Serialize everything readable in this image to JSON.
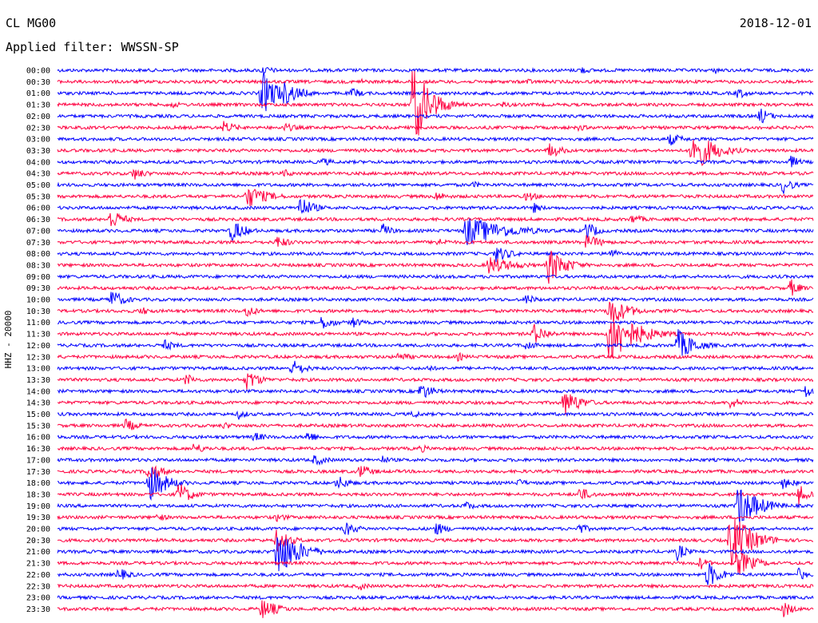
{
  "header": {
    "station": "CL MG00",
    "date": "2018-12-01",
    "filter_label": "Applied filter: WWSSN-SP"
  },
  "chart_data": {
    "type": "line",
    "title": "CL MG00",
    "ylabel": "HHZ - 20000",
    "row_labels": [
      "00:00",
      "00:30",
      "01:00",
      "01:30",
      "02:00",
      "02:30",
      "03:00",
      "03:30",
      "04:00",
      "04:30",
      "05:00",
      "05:30",
      "06:00",
      "06:30",
      "07:00",
      "07:30",
      "08:00",
      "08:30",
      "09:00",
      "09:30",
      "10:00",
      "10:30",
      "11:00",
      "11:30",
      "12:00",
      "12:30",
      "13:00",
      "13:30",
      "14:00",
      "14:30",
      "15:00",
      "15:30",
      "16:00",
      "16:30",
      "17:00",
      "17:30",
      "18:00",
      "18:30",
      "19:00",
      "19:30",
      "20:00",
      "20:30",
      "21:00",
      "21:30",
      "22:00",
      "22:30",
      "23:00",
      "23:30"
    ],
    "colors": [
      "#0000ff",
      "#ff0040"
    ],
    "background_noise": 2.0,
    "events": [
      {
        "row": 0,
        "pos": 0.27,
        "amp": 6,
        "dur": 0.05
      },
      {
        "row": 0,
        "pos": 0.69,
        "amp": 6,
        "dur": 0.04
      },
      {
        "row": 0,
        "pos": 0.87,
        "amp": 5,
        "dur": 0.03
      },
      {
        "row": 1,
        "pos": 0.4,
        "amp": 5,
        "dur": 0.03
      },
      {
        "row": 1,
        "pos": 0.62,
        "amp": 5,
        "dur": 0.03
      },
      {
        "row": 2,
        "pos": 0.27,
        "amp": 30,
        "dur": 0.05
      },
      {
        "row": 2,
        "pos": 0.3,
        "amp": 16,
        "dur": 0.05
      },
      {
        "row": 2,
        "pos": 0.39,
        "amp": 8,
        "dur": 0.03
      },
      {
        "row": 2,
        "pos": 0.9,
        "amp": 8,
        "dur": 0.03
      },
      {
        "row": 3,
        "pos": 0.15,
        "amp": 5,
        "dur": 0.04
      },
      {
        "row": 3,
        "pos": 0.47,
        "amp": 55,
        "dur": 0.05
      },
      {
        "row": 3,
        "pos": 0.59,
        "amp": 5,
        "dur": 0.03
      },
      {
        "row": 4,
        "pos": 0.93,
        "amp": 12,
        "dur": 0.03
      },
      {
        "row": 5,
        "pos": 0.22,
        "amp": 9,
        "dur": 0.04
      },
      {
        "row": 5,
        "pos": 0.3,
        "amp": 6,
        "dur": 0.05
      },
      {
        "row": 5,
        "pos": 0.69,
        "amp": 5,
        "dur": 0.03
      },
      {
        "row": 6,
        "pos": 0.81,
        "amp": 9,
        "dur": 0.04
      },
      {
        "row": 7,
        "pos": 0.65,
        "amp": 11,
        "dur": 0.04
      },
      {
        "row": 7,
        "pos": 0.84,
        "amp": 30,
        "dur": 0.06
      },
      {
        "row": 8,
        "pos": 0.35,
        "amp": 6,
        "dur": 0.04
      },
      {
        "row": 8,
        "pos": 0.97,
        "amp": 9,
        "dur": 0.03
      },
      {
        "row": 9,
        "pos": 0.1,
        "amp": 9,
        "dur": 0.04
      },
      {
        "row": 9,
        "pos": 0.3,
        "amp": 6,
        "dur": 0.03
      },
      {
        "row": 10,
        "pos": 0.55,
        "amp": 5,
        "dur": 0.03
      },
      {
        "row": 10,
        "pos": 0.96,
        "amp": 12,
        "dur": 0.03
      },
      {
        "row": 11,
        "pos": 0.25,
        "amp": 16,
        "dur": 0.06
      },
      {
        "row": 11,
        "pos": 0.5,
        "amp": 7,
        "dur": 0.04
      },
      {
        "row": 11,
        "pos": 0.62,
        "amp": 7,
        "dur": 0.04
      },
      {
        "row": 12,
        "pos": 0.32,
        "amp": 16,
        "dur": 0.04
      },
      {
        "row": 12,
        "pos": 0.63,
        "amp": 7,
        "dur": 0.03
      },
      {
        "row": 13,
        "pos": 0.07,
        "amp": 14,
        "dur": 0.04
      },
      {
        "row": 13,
        "pos": 0.76,
        "amp": 7,
        "dur": 0.04
      },
      {
        "row": 14,
        "pos": 0.23,
        "amp": 16,
        "dur": 0.04
      },
      {
        "row": 14,
        "pos": 0.43,
        "amp": 10,
        "dur": 0.03
      },
      {
        "row": 14,
        "pos": 0.54,
        "amp": 20,
        "dur": 0.12
      },
      {
        "row": 14,
        "pos": 0.7,
        "amp": 14,
        "dur": 0.03
      },
      {
        "row": 15,
        "pos": 0.29,
        "amp": 9,
        "dur": 0.04
      },
      {
        "row": 15,
        "pos": 0.5,
        "amp": 6,
        "dur": 0.05
      },
      {
        "row": 15,
        "pos": 0.7,
        "amp": 10,
        "dur": 0.05
      },
      {
        "row": 16,
        "pos": 0.58,
        "amp": 11,
        "dur": 0.05
      },
      {
        "row": 16,
        "pos": 0.73,
        "amp": 8,
        "dur": 0.03
      },
      {
        "row": 17,
        "pos": 0.57,
        "amp": 12,
        "dur": 0.08
      },
      {
        "row": 17,
        "pos": 0.65,
        "amp": 24,
        "dur": 0.05
      },
      {
        "row": 19,
        "pos": 0.97,
        "amp": 12,
        "dur": 0.03
      },
      {
        "row": 20,
        "pos": 0.07,
        "amp": 14,
        "dur": 0.04
      },
      {
        "row": 20,
        "pos": 0.62,
        "amp": 8,
        "dur": 0.03
      },
      {
        "row": 21,
        "pos": 0.11,
        "amp": 6,
        "dur": 0.04
      },
      {
        "row": 21,
        "pos": 0.25,
        "amp": 10,
        "dur": 0.03
      },
      {
        "row": 21,
        "pos": 0.73,
        "amp": 22,
        "dur": 0.05
      },
      {
        "row": 22,
        "pos": 0.35,
        "amp": 10,
        "dur": 0.04
      },
      {
        "row": 22,
        "pos": 0.39,
        "amp": 8,
        "dur": 0.03
      },
      {
        "row": 23,
        "pos": 0.63,
        "amp": 14,
        "dur": 0.04
      },
      {
        "row": 23,
        "pos": 0.73,
        "amp": 40,
        "dur": 0.07
      },
      {
        "row": 24,
        "pos": 0.14,
        "amp": 8,
        "dur": 0.04
      },
      {
        "row": 24,
        "pos": 0.62,
        "amp": 8,
        "dur": 0.03
      },
      {
        "row": 24,
        "pos": 0.82,
        "amp": 22,
        "dur": 0.05
      },
      {
        "row": 25,
        "pos": 0.45,
        "amp": 6,
        "dur": 0.05
      },
      {
        "row": 25,
        "pos": 0.53,
        "amp": 6,
        "dur": 0.03
      },
      {
        "row": 26,
        "pos": 0.31,
        "amp": 12,
        "dur": 0.04
      },
      {
        "row": 26,
        "pos": 0.49,
        "amp": 5,
        "dur": 0.03
      },
      {
        "row": 27,
        "pos": 0.17,
        "amp": 9,
        "dur": 0.03
      },
      {
        "row": 27,
        "pos": 0.25,
        "amp": 14,
        "dur": 0.04
      },
      {
        "row": 28,
        "pos": 0.48,
        "amp": 12,
        "dur": 0.04
      },
      {
        "row": 28,
        "pos": 0.99,
        "amp": 11,
        "dur": 0.02
      },
      {
        "row": 29,
        "pos": 0.67,
        "amp": 18,
        "dur": 0.05
      },
      {
        "row": 29,
        "pos": 0.89,
        "amp": 8,
        "dur": 0.04
      },
      {
        "row": 30,
        "pos": 0.24,
        "amp": 7,
        "dur": 0.03
      },
      {
        "row": 30,
        "pos": 0.47,
        "amp": 6,
        "dur": 0.03
      },
      {
        "row": 31,
        "pos": 0.09,
        "amp": 9,
        "dur": 0.04
      },
      {
        "row": 31,
        "pos": 0.22,
        "amp": 5,
        "dur": 0.04
      },
      {
        "row": 32,
        "pos": 0.26,
        "amp": 7,
        "dur": 0.04
      },
      {
        "row": 32,
        "pos": 0.33,
        "amp": 9,
        "dur": 0.03
      },
      {
        "row": 33,
        "pos": 0.18,
        "amp": 8,
        "dur": 0.04
      },
      {
        "row": 33,
        "pos": 0.48,
        "amp": 6,
        "dur": 0.03
      },
      {
        "row": 34,
        "pos": 0.34,
        "amp": 8,
        "dur": 0.04
      },
      {
        "row": 34,
        "pos": 0.43,
        "amp": 6,
        "dur": 0.03
      },
      {
        "row": 35,
        "pos": 0.12,
        "amp": 14,
        "dur": 0.04
      },
      {
        "row": 35,
        "pos": 0.4,
        "amp": 10,
        "dur": 0.04
      },
      {
        "row": 36,
        "pos": 0.12,
        "amp": 26,
        "dur": 0.05
      },
      {
        "row": 36,
        "pos": 0.37,
        "amp": 10,
        "dur": 0.04
      },
      {
        "row": 36,
        "pos": 0.61,
        "amp": 6,
        "dur": 0.03
      },
      {
        "row": 36,
        "pos": 0.96,
        "amp": 8,
        "dur": 0.04
      },
      {
        "row": 37,
        "pos": 0.16,
        "amp": 16,
        "dur": 0.04
      },
      {
        "row": 37,
        "pos": 0.69,
        "amp": 10,
        "dur": 0.04
      },
      {
        "row": 37,
        "pos": 0.98,
        "amp": 14,
        "dur": 0.03
      },
      {
        "row": 38,
        "pos": 0.54,
        "amp": 7,
        "dur": 0.03
      },
      {
        "row": 38,
        "pos": 0.9,
        "amp": 30,
        "dur": 0.06
      },
      {
        "row": 39,
        "pos": 0.13,
        "amp": 6,
        "dur": 0.04
      },
      {
        "row": 39,
        "pos": 0.29,
        "amp": 6,
        "dur": 0.04
      },
      {
        "row": 40,
        "pos": 0.38,
        "amp": 10,
        "dur": 0.04
      },
      {
        "row": 40,
        "pos": 0.5,
        "amp": 9,
        "dur": 0.04
      },
      {
        "row": 40,
        "pos": 0.69,
        "amp": 8,
        "dur": 0.03
      },
      {
        "row": 41,
        "pos": 0.29,
        "amp": 16,
        "dur": 0.04
      },
      {
        "row": 41,
        "pos": 0.89,
        "amp": 38,
        "dur": 0.06
      },
      {
        "row": 42,
        "pos": 0.29,
        "amp": 35,
        "dur": 0.06
      },
      {
        "row": 42,
        "pos": 0.82,
        "amp": 12,
        "dur": 0.03
      },
      {
        "row": 43,
        "pos": 0.85,
        "amp": 9,
        "dur": 0.03
      },
      {
        "row": 43,
        "pos": 0.9,
        "amp": 18,
        "dur": 0.05
      },
      {
        "row": 44,
        "pos": 0.08,
        "amp": 9,
        "dur": 0.04
      },
      {
        "row": 44,
        "pos": 0.86,
        "amp": 18,
        "dur": 0.04
      },
      {
        "row": 44,
        "pos": 0.98,
        "amp": 9,
        "dur": 0.03
      },
      {
        "row": 45,
        "pos": 0.4,
        "amp": 6,
        "dur": 0.03
      },
      {
        "row": 46,
        "pos": 0.54,
        "amp": 6,
        "dur": 0.03
      },
      {
        "row": 47,
        "pos": 0.27,
        "amp": 14,
        "dur": 0.05
      },
      {
        "row": 47,
        "pos": 0.96,
        "amp": 12,
        "dur": 0.03
      }
    ]
  }
}
